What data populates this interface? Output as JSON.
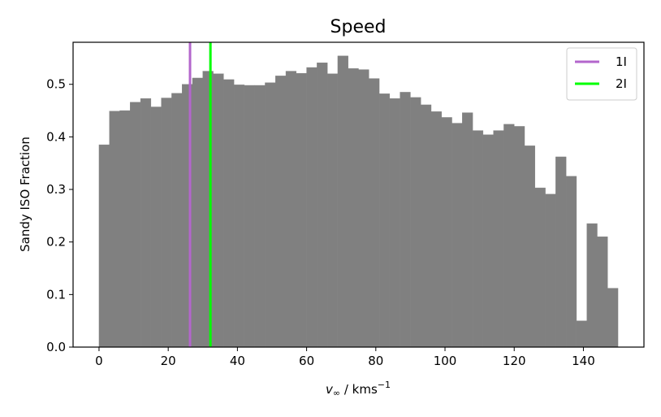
{
  "chart_data": {
    "type": "bar",
    "title": "Speed",
    "xlabel": "v∞ / kms−1",
    "ylabel": "Sandy ISO Fraction",
    "xlim": [
      -7.5,
      157.5
    ],
    "ylim": [
      0.0,
      0.58
    ],
    "xticks": [
      0,
      20,
      40,
      60,
      80,
      100,
      120,
      140
    ],
    "yticks": [
      0.0,
      0.1,
      0.2,
      0.3,
      0.4,
      0.5
    ],
    "ytick_labels": [
      "0.0",
      "0.1",
      "0.2",
      "0.3",
      "0.4",
      "0.5"
    ],
    "bin_width": 3,
    "bin_starts": [
      0,
      3,
      6,
      9,
      12,
      15,
      18,
      21,
      24,
      27,
      30,
      33,
      36,
      39,
      42,
      45,
      48,
      51,
      54,
      57,
      60,
      63,
      66,
      69,
      72,
      75,
      78,
      81,
      84,
      87,
      90,
      93,
      96,
      99,
      102,
      105,
      108,
      111,
      114,
      117,
      120,
      123,
      126,
      129,
      132,
      135,
      138,
      141,
      144,
      147
    ],
    "values": [
      0.385,
      0.449,
      0.45,
      0.466,
      0.473,
      0.457,
      0.474,
      0.483,
      0.5,
      0.512,
      0.525,
      0.52,
      0.509,
      0.499,
      0.498,
      0.498,
      0.503,
      0.516,
      0.525,
      0.521,
      0.532,
      0.541,
      0.52,
      0.554,
      0.53,
      0.528,
      0.511,
      0.482,
      0.473,
      0.485,
      0.475,
      0.461,
      0.448,
      0.437,
      0.426,
      0.446,
      0.412,
      0.404,
      0.412,
      0.424,
      0.42,
      0.383,
      0.303,
      0.291,
      0.362,
      0.325,
      0.05,
      0.235,
      0.21,
      0.112
    ],
    "bar_color": "#808080",
    "grid": false,
    "vlines": [
      {
        "name": "1I",
        "x": 26.3,
        "color": "#b366cc"
      },
      {
        "name": "2I",
        "x": 32.2,
        "color": "#00ff00"
      }
    ],
    "legend_position": "top-right"
  }
}
